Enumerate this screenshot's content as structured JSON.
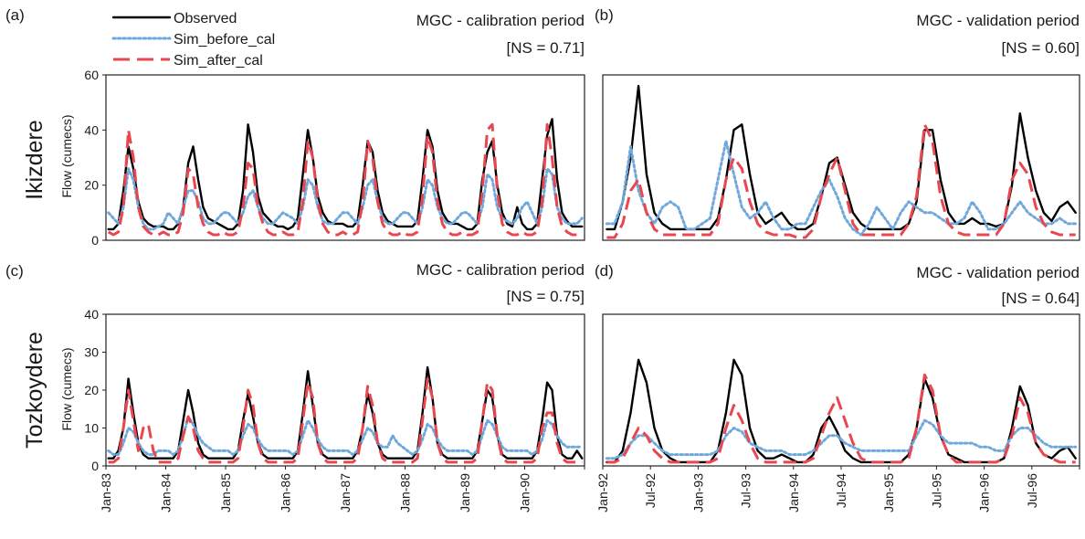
{
  "colors": {
    "observed": "#000000",
    "sim_before_cal": "#6fa8dc",
    "sim_after_cal": "#e8474f"
  },
  "legend": [
    {
      "key": "observed",
      "label": "Observed",
      "style": "solid"
    },
    {
      "key": "sim_before_cal",
      "label": "Sim_before_cal",
      "style": "dotted"
    },
    {
      "key": "sim_after_cal",
      "label": "Sim_after_cal",
      "style": "dashed"
    }
  ],
  "rows": [
    {
      "label": "Ikizdere",
      "ylabel": "Flow (cumecs)"
    },
    {
      "label": "Tozkoydere",
      "ylabel": "Flow (cumecs)"
    }
  ],
  "chart_data": [
    {
      "id": "a",
      "type": "line",
      "letter": "(a)",
      "title": "MGC - calibration period",
      "annotation": "[NS = 0.71]",
      "ylim": [
        0,
        60
      ],
      "yticks": [
        0,
        20,
        40,
        60
      ],
      "x_start": "Jan-83",
      "months": 96,
      "xtick_labels": [
        "Jan-83",
        "Jan-84",
        "Jan-85",
        "Jan-86",
        "Jan-87",
        "Jan-88",
        "Jan-89",
        "Jan-90"
      ],
      "xtick_months": [
        0,
        12,
        24,
        36,
        48,
        60,
        72,
        84
      ],
      "series": [
        {
          "key": "observed",
          "name": "Observed",
          "values": [
            4,
            4,
            6,
            18,
            34,
            26,
            14,
            8,
            6,
            5,
            5,
            5,
            4,
            4,
            6,
            12,
            28,
            34,
            22,
            12,
            8,
            7,
            6,
            5,
            4,
            4,
            6,
            18,
            42,
            32,
            16,
            10,
            8,
            6,
            5,
            5,
            4,
            5,
            8,
            24,
            40,
            30,
            16,
            10,
            7,
            6,
            6,
            6,
            5,
            5,
            7,
            20,
            36,
            32,
            18,
            10,
            7,
            6,
            5,
            5,
            5,
            5,
            7,
            22,
            40,
            34,
            18,
            10,
            7,
            6,
            6,
            5,
            4,
            4,
            6,
            22,
            32,
            36,
            20,
            10,
            6,
            5,
            12,
            6,
            4,
            4,
            6,
            22,
            38,
            44,
            22,
            10,
            7,
            5,
            5,
            5
          ]
        },
        {
          "key": "sim_before_cal",
          "name": "Sim_before_cal",
          "values": [
            10,
            8,
            6,
            12,
            26,
            22,
            12,
            6,
            4,
            4,
            5,
            6,
            10,
            8,
            6,
            12,
            18,
            18,
            14,
            8,
            6,
            6,
            8,
            10,
            10,
            8,
            6,
            10,
            16,
            18,
            12,
            8,
            6,
            6,
            8,
            10,
            9,
            8,
            6,
            12,
            22,
            20,
            12,
            7,
            6,
            6,
            8,
            10,
            10,
            8,
            6,
            12,
            20,
            22,
            14,
            8,
            6,
            6,
            8,
            10,
            10,
            8,
            6,
            12,
            22,
            20,
            12,
            8,
            6,
            6,
            8,
            10,
            10,
            8,
            6,
            12,
            24,
            22,
            12,
            8,
            7,
            6,
            8,
            12,
            14,
            10,
            6,
            12,
            26,
            24,
            12,
            8,
            6,
            6,
            6,
            8
          ]
        },
        {
          "key": "sim_after_cal",
          "name": "Sim_after_cal",
          "values": [
            3,
            2,
            3,
            12,
            40,
            30,
            12,
            5,
            3,
            2,
            2,
            3,
            2,
            2,
            3,
            10,
            26,
            24,
            12,
            6,
            3,
            2,
            2,
            3,
            2,
            2,
            3,
            12,
            28,
            26,
            12,
            6,
            3,
            2,
            2,
            3,
            2,
            2,
            3,
            14,
            36,
            30,
            14,
            6,
            3,
            2,
            2,
            3,
            2,
            2,
            3,
            14,
            36,
            30,
            14,
            6,
            3,
            2,
            2,
            3,
            2,
            2,
            3,
            16,
            38,
            32,
            14,
            6,
            3,
            2,
            2,
            3,
            2,
            2,
            3,
            18,
            40,
            42,
            18,
            6,
            3,
            2,
            2,
            3,
            2,
            2,
            3,
            14,
            42,
            30,
            12,
            5,
            3,
            2,
            2,
            3
          ]
        }
      ]
    },
    {
      "id": "b",
      "type": "line",
      "letter": "(b)",
      "title": "MGC - validation period",
      "annotation": "[NS = 0.60]",
      "ylim": [
        0,
        60
      ],
      "yticks": [
        0,
        20,
        40,
        60
      ],
      "x_start": "Jan-92",
      "months": 60,
      "xtick_labels": [],
      "xtick_months": [],
      "series": [
        {
          "key": "observed",
          "name": "Observed",
          "values": [
            4,
            4,
            14,
            30,
            56,
            24,
            10,
            6,
            4,
            4,
            4,
            4,
            4,
            4,
            8,
            22,
            40,
            42,
            24,
            10,
            6,
            8,
            10,
            6,
            4,
            4,
            6,
            16,
            28,
            30,
            20,
            10,
            6,
            4,
            4,
            4,
            4,
            4,
            6,
            14,
            40,
            40,
            22,
            10,
            6,
            6,
            8,
            6,
            6,
            5,
            6,
            20,
            46,
            30,
            18,
            10,
            7,
            12,
            14,
            10
          ]
        },
        {
          "key": "sim_before_cal",
          "name": "Sim_before_cal",
          "values": [
            6,
            6,
            14,
            34,
            18,
            10,
            6,
            12,
            14,
            12,
            4,
            4,
            6,
            8,
            22,
            36,
            24,
            12,
            8,
            10,
            14,
            8,
            4,
            4,
            6,
            6,
            12,
            18,
            22,
            16,
            8,
            4,
            2,
            6,
            12,
            8,
            4,
            10,
            14,
            12,
            10,
            10,
            8,
            6,
            6,
            8,
            14,
            10,
            4,
            4,
            6,
            10,
            14,
            10,
            8,
            6,
            6,
            8,
            6,
            6
          ]
        },
        {
          "key": "sim_after_cal",
          "name": "Sim_after_cal",
          "values": [
            1,
            1,
            6,
            18,
            22,
            10,
            4,
            2,
            2,
            2,
            2,
            2,
            2,
            2,
            6,
            22,
            30,
            26,
            14,
            6,
            3,
            2,
            2,
            2,
            1,
            1,
            4,
            16,
            24,
            30,
            18,
            6,
            2,
            2,
            2,
            2,
            2,
            2,
            6,
            16,
            42,
            36,
            16,
            6,
            3,
            2,
            2,
            2,
            2,
            2,
            6,
            22,
            28,
            24,
            12,
            6,
            3,
            2,
            2,
            2
          ]
        }
      ]
    },
    {
      "id": "c",
      "type": "line",
      "letter": "(c)",
      "title": "MGC - calibration period",
      "annotation": "[NS = 0.75]",
      "ylim": [
        0,
        40
      ],
      "yticks": [
        0,
        10,
        20,
        30,
        40
      ],
      "x_start": "Jan-83",
      "months": 96,
      "xtick_labels": [
        "Jan-83",
        "Jan-84",
        "Jan-85",
        "Jan-86",
        "Jan-87",
        "Jan-88",
        "Jan-89",
        "Jan-90"
      ],
      "xtick_months": [
        0,
        12,
        24,
        36,
        48,
        60,
        72,
        84
      ],
      "series": [
        {
          "key": "observed",
          "name": "Observed",
          "values": [
            2,
            2,
            4,
            10,
            23,
            14,
            6,
            3,
            2,
            2,
            2,
            2,
            2,
            2,
            4,
            12,
            20,
            14,
            6,
            3,
            2,
            2,
            2,
            2,
            2,
            2,
            4,
            12,
            19,
            13,
            6,
            3,
            2,
            2,
            2,
            2,
            2,
            2,
            4,
            14,
            25,
            16,
            6,
            3,
            2,
            2,
            2,
            2,
            2,
            2,
            4,
            10,
            19,
            14,
            6,
            3,
            2,
            2,
            2,
            2,
            2,
            2,
            4,
            14,
            26,
            18,
            6,
            3,
            2,
            2,
            2,
            2,
            2,
            2,
            4,
            12,
            20,
            18,
            8,
            3,
            2,
            2,
            2,
            2,
            2,
            2,
            4,
            12,
            22,
            20,
            8,
            3,
            2,
            2,
            4,
            2
          ]
        },
        {
          "key": "sim_before_cal",
          "name": "Sim_before_cal",
          "values": [
            4,
            3,
            3,
            6,
            10,
            9,
            6,
            4,
            3,
            3,
            4,
            4,
            4,
            3,
            4,
            8,
            13,
            11,
            8,
            6,
            5,
            4,
            4,
            4,
            4,
            3,
            4,
            8,
            11,
            10,
            7,
            5,
            4,
            4,
            4,
            4,
            4,
            3,
            4,
            8,
            12,
            10,
            7,
            5,
            4,
            4,
            4,
            4,
            4,
            3,
            4,
            7,
            10,
            9,
            6,
            5,
            5,
            8,
            6,
            5,
            4,
            3,
            4,
            7,
            11,
            10,
            7,
            5,
            4,
            4,
            4,
            4,
            4,
            3,
            4,
            8,
            12,
            11,
            8,
            5,
            4,
            4,
            4,
            4,
            4,
            3,
            4,
            7,
            12,
            11,
            8,
            6,
            5,
            5,
            5,
            5
          ]
        },
        {
          "key": "sim_after_cal",
          "name": "Sim_after_cal",
          "values": [
            1,
            1,
            2,
            10,
            20,
            12,
            4,
            10,
            11,
            4,
            1,
            1,
            1,
            1,
            2,
            8,
            13,
            10,
            4,
            2,
            1,
            1,
            1,
            1,
            1,
            1,
            2,
            10,
            20,
            16,
            6,
            2,
            1,
            1,
            1,
            1,
            1,
            1,
            2,
            12,
            22,
            18,
            6,
            2,
            1,
            1,
            1,
            1,
            1,
            1,
            2,
            10,
            21,
            16,
            6,
            2,
            1,
            1,
            1,
            1,
            1,
            1,
            2,
            12,
            23,
            18,
            6,
            2,
            1,
            1,
            1,
            1,
            1,
            1,
            2,
            12,
            22,
            20,
            8,
            2,
            1,
            1,
            1,
            1,
            1,
            1,
            2,
            10,
            14,
            14,
            6,
            2,
            1,
            1,
            1,
            1
          ]
        }
      ]
    },
    {
      "id": "d",
      "type": "line",
      "letter": "(d)",
      "title": "MGC - validation period",
      "annotation": "[NS = 0.64]",
      "ylim": [
        0,
        40
      ],
      "yticks": [
        0,
        10,
        20,
        30,
        40
      ],
      "x_start": "Jan-92",
      "months": 60,
      "xtick_labels": [
        "Jan-92",
        "Jul-92",
        "Jan-93",
        "Jul-93",
        "Jan-94",
        "Jul-94",
        "Jan-95",
        "Jul-95",
        "Jan-96",
        "Jul-96"
      ],
      "xtick_months": [
        0,
        6,
        12,
        18,
        24,
        30,
        36,
        42,
        48,
        54
      ],
      "series": [
        {
          "key": "observed",
          "name": "Observed",
          "values": [
            1,
            1,
            4,
            14,
            28,
            22,
            10,
            4,
            2,
            1,
            1,
            1,
            1,
            1,
            4,
            14,
            28,
            24,
            10,
            4,
            2,
            2,
            3,
            2,
            1,
            1,
            3,
            10,
            13,
            9,
            4,
            2,
            1,
            1,
            1,
            1,
            1,
            1,
            3,
            10,
            23,
            18,
            8,
            3,
            2,
            1,
            1,
            1,
            1,
            1,
            2,
            10,
            21,
            16,
            6,
            3,
            2,
            4,
            5,
            2
          ]
        },
        {
          "key": "sim_before_cal",
          "name": "Sim_before_cal",
          "values": [
            2,
            2,
            3,
            6,
            8,
            8,
            6,
            4,
            3,
            3,
            3,
            3,
            3,
            3,
            4,
            8,
            10,
            9,
            6,
            5,
            4,
            4,
            4,
            3,
            3,
            3,
            4,
            6,
            8,
            8,
            6,
            5,
            4,
            4,
            4,
            4,
            4,
            4,
            4,
            8,
            12,
            11,
            8,
            6,
            6,
            6,
            6,
            5,
            5,
            4,
            4,
            8,
            10,
            10,
            8,
            6,
            5,
            5,
            5,
            5
          ]
        },
        {
          "key": "sim_after_cal",
          "name": "Sim_after_cal",
          "values": [
            1,
            1,
            2,
            6,
            10,
            8,
            4,
            2,
            1,
            1,
            1,
            1,
            1,
            1,
            2,
            10,
            16,
            12,
            6,
            2,
            1,
            1,
            1,
            1,
            1,
            1,
            2,
            8,
            14,
            18,
            12,
            6,
            2,
            1,
            1,
            1,
            1,
            1,
            2,
            10,
            24,
            20,
            8,
            3,
            1,
            1,
            1,
            1,
            1,
            1,
            2,
            8,
            18,
            14,
            6,
            3,
            2,
            1,
            1,
            1
          ]
        }
      ]
    }
  ]
}
